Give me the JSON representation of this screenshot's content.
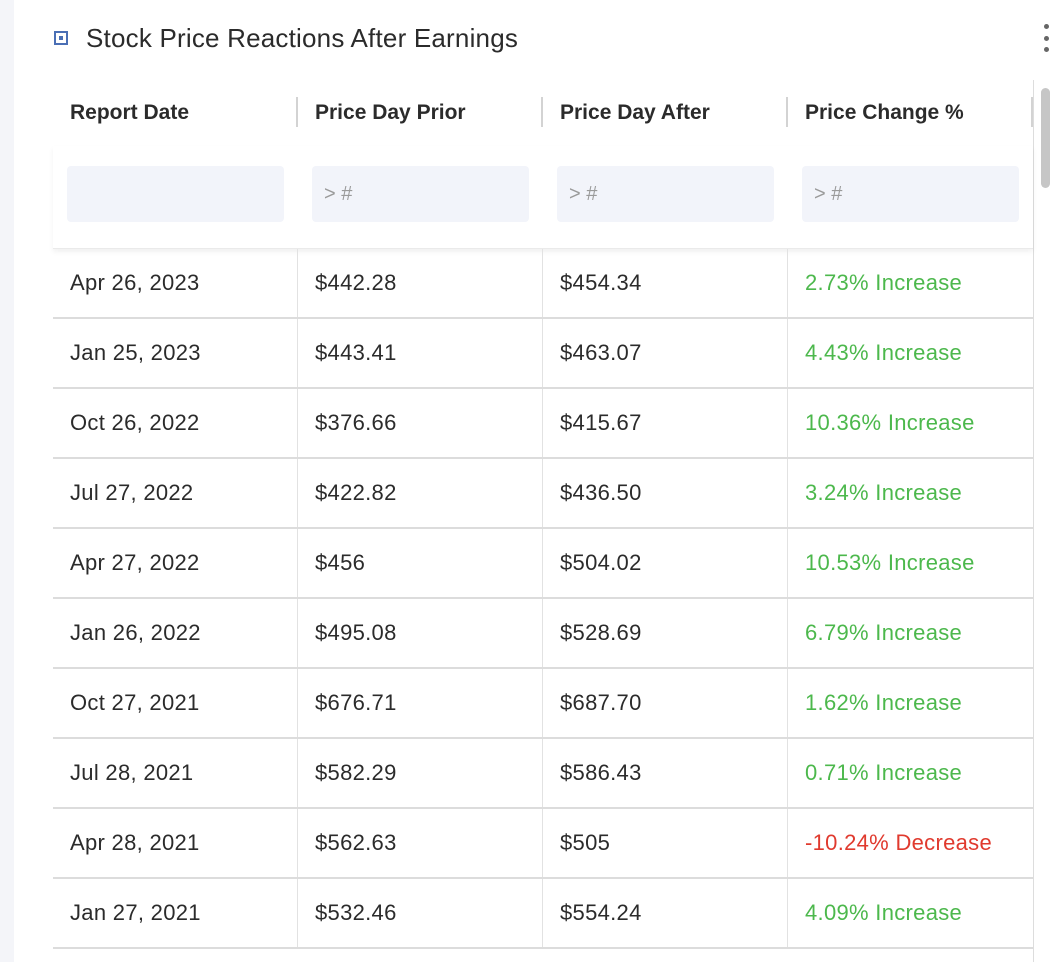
{
  "widget": {
    "title": "Stock Price Reactions After Earnings",
    "icon": "square-dot-icon"
  },
  "table": {
    "headers": [
      "Report Date",
      "Price Day Prior",
      "Price Day After",
      "Price Change %"
    ],
    "filters": [
      {
        "value": "",
        "placeholder": ""
      },
      {
        "value": "",
        "placeholder": "> #"
      },
      {
        "value": "",
        "placeholder": "> #"
      },
      {
        "value": "",
        "placeholder": "> #"
      }
    ],
    "rows": [
      {
        "date": "Apr 26, 2023",
        "prior": "$442.28",
        "after": "$454.34",
        "change": "2.73% Increase",
        "direction": "up"
      },
      {
        "date": "Jan 25, 2023",
        "prior": "$443.41",
        "after": "$463.07",
        "change": "4.43% Increase",
        "direction": "up"
      },
      {
        "date": "Oct 26, 2022",
        "prior": "$376.66",
        "after": "$415.67",
        "change": "10.36% Increase",
        "direction": "up"
      },
      {
        "date": "Jul 27, 2022",
        "prior": "$422.82",
        "after": "$436.50",
        "change": "3.24% Increase",
        "direction": "up"
      },
      {
        "date": "Apr 27, 2022",
        "prior": "$456",
        "after": "$504.02",
        "change": "10.53% Increase",
        "direction": "up"
      },
      {
        "date": "Jan 26, 2022",
        "prior": "$495.08",
        "after": "$528.69",
        "change": "6.79% Increase",
        "direction": "up"
      },
      {
        "date": "Oct 27, 2021",
        "prior": "$676.71",
        "after": "$687.70",
        "change": "1.62% Increase",
        "direction": "up"
      },
      {
        "date": "Jul 28, 2021",
        "prior": "$582.29",
        "after": "$586.43",
        "change": "0.71% Increase",
        "direction": "up"
      },
      {
        "date": "Apr 28, 2021",
        "prior": "$562.63",
        "after": "$505",
        "change": "-10.24% Decrease",
        "direction": "down"
      },
      {
        "date": "Jan 27, 2021",
        "prior": "$532.46",
        "after": "$554.24",
        "change": "4.09% Increase",
        "direction": "up"
      }
    ]
  },
  "colors": {
    "increase": "#4cb84c",
    "decrease": "#e03a2e",
    "accent": "#4a6fb5"
  }
}
